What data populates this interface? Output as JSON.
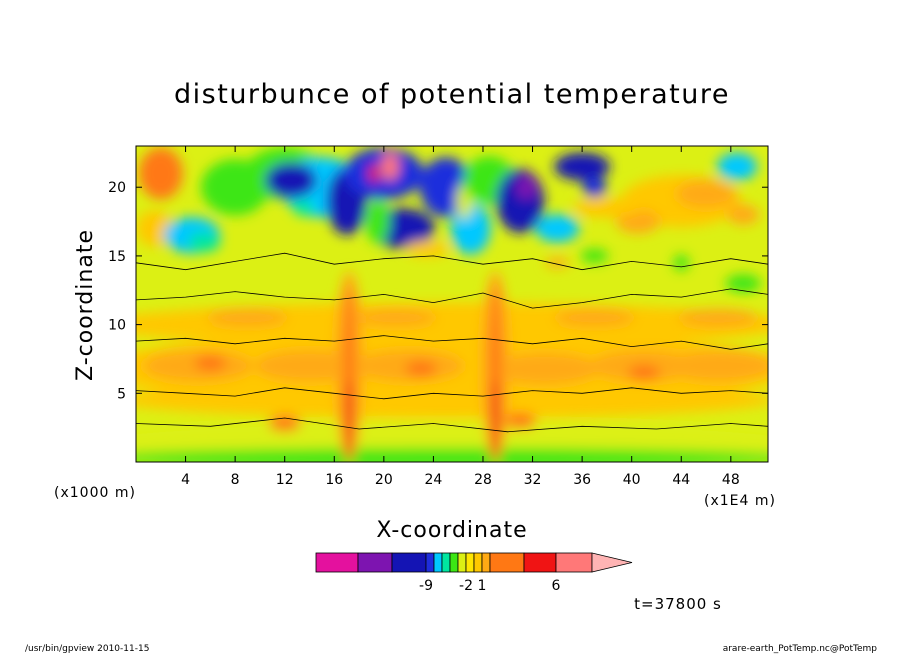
{
  "chart_data": {
    "type": "heatmap",
    "title": "disturbunce of potential temperature",
    "xlabel": "X-coordinate",
    "ylabel": "Z-coordinate",
    "x_unit": "(x1E4 m)",
    "y_unit": "(x1000 m)",
    "xlim": [
      0,
      51
    ],
    "ylim": [
      0,
      23
    ],
    "x_ticks": [
      4,
      8,
      12,
      16,
      20,
      24,
      28,
      32,
      36,
      40,
      44,
      48
    ],
    "y_ticks": [
      5,
      10,
      15,
      20
    ],
    "time_label": "t=37800 s",
    "colorbar": {
      "colors": [
        "#e4119e",
        "#7d14b0",
        "#1414b4",
        "#1e2ddc",
        "#00c8ff",
        "#00e6a0",
        "#3ce614",
        "#dcf014",
        "#ffe600",
        "#ffc800",
        "#ffaa14",
        "#ff7814",
        "#f01414",
        "#ff7878",
        "#ffb4b4"
      ],
      "extend": "max",
      "labels": [
        {
          "value": "-9",
          "index": 2
        },
        {
          "value": "-2",
          "index": 7
        },
        {
          "value": "1",
          "index": 9
        },
        {
          "value": "6",
          "index": 12
        }
      ]
    }
  },
  "footer": {
    "left": "/usr/bin/gpview   2010-11-15",
    "right": "arare-earth_PotTemp.nc@PotTemp"
  }
}
